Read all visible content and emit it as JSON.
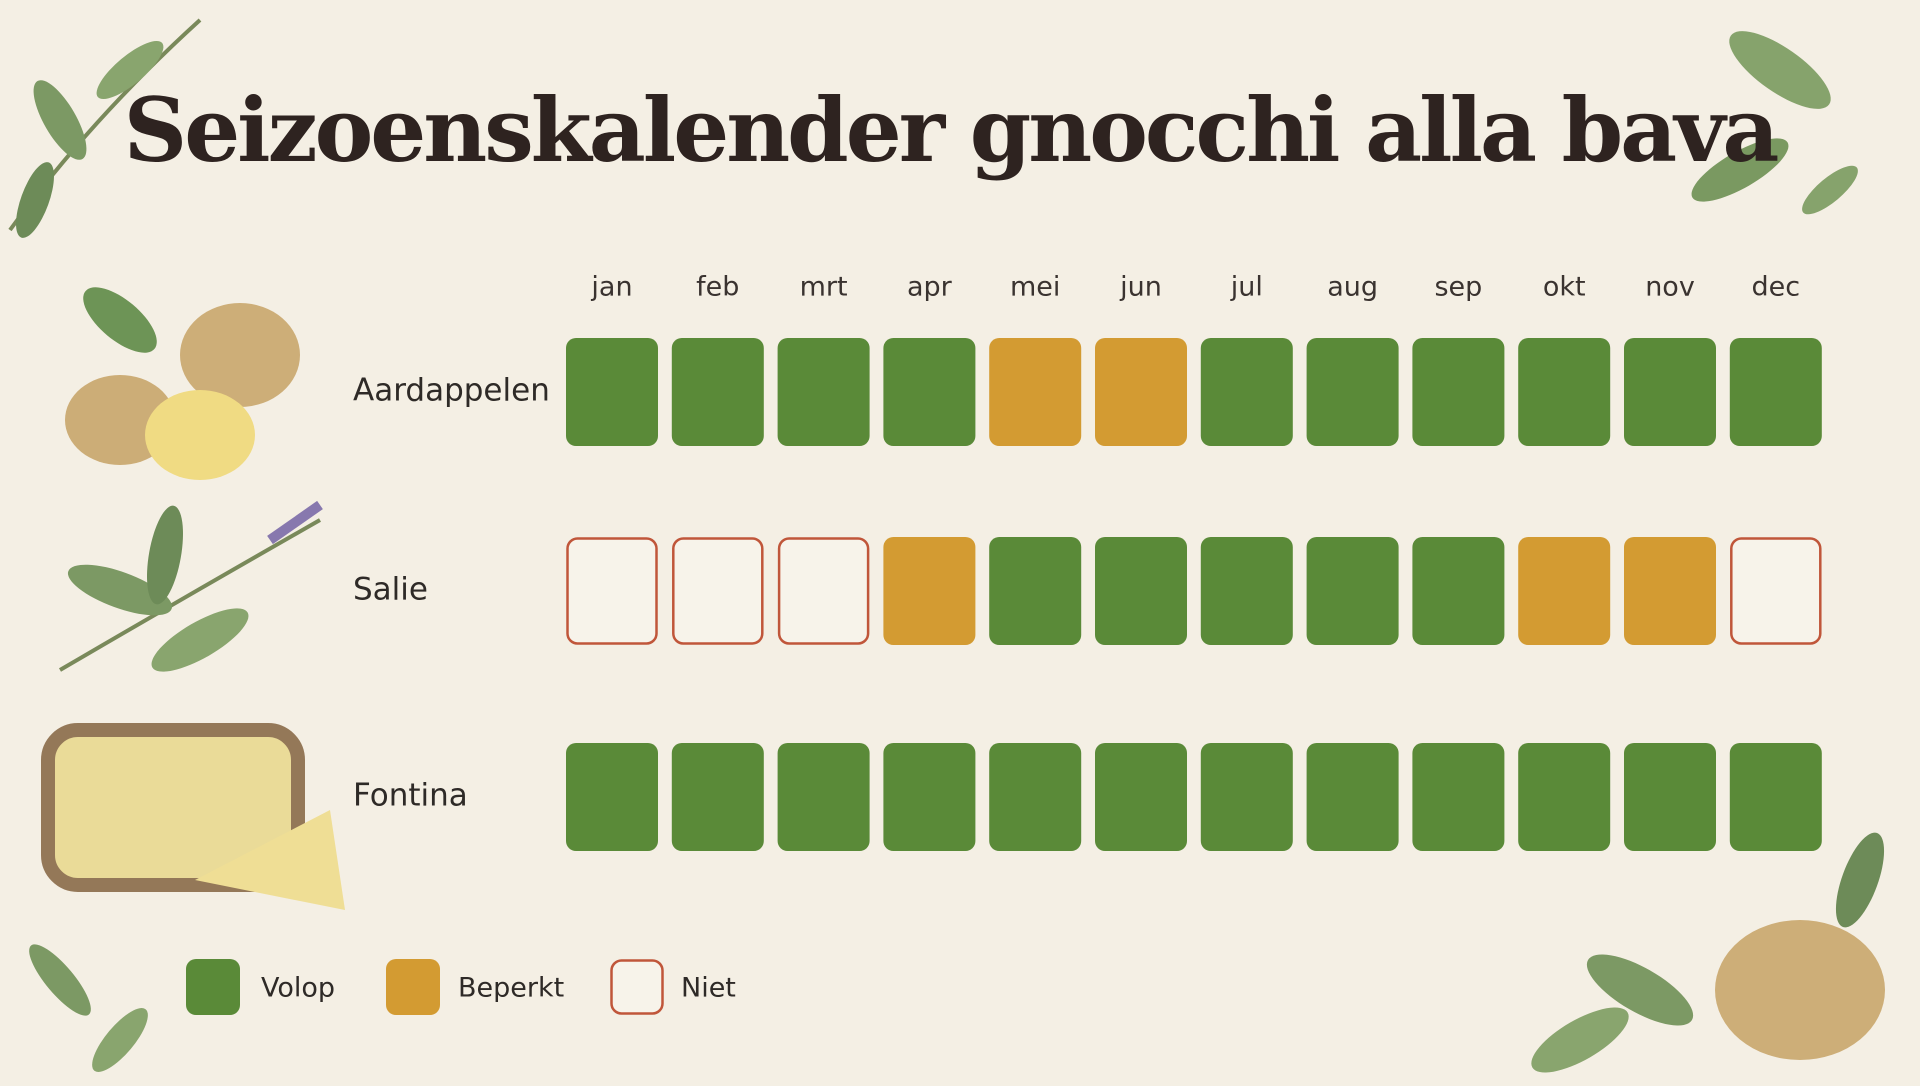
{
  "title": "Seizoenskalender gnocchi alla bava",
  "months": [
    "jan",
    "feb",
    "mrt",
    "apr",
    "mei",
    "jun",
    "jul",
    "aug",
    "sep",
    "okt",
    "nov",
    "dec"
  ],
  "legend": [
    {
      "label": "Volop",
      "color": "#5a8a38",
      "style": "fill"
    },
    {
      "label": "Beperkt",
      "color": "#d39b32",
      "style": "fill"
    },
    {
      "label": "Niet",
      "color": "#c0563a",
      "style": "outline"
    }
  ],
  "rows": [
    {
      "label": "Aardappelen",
      "cells": [
        0,
        0,
        0,
        0,
        1,
        1,
        0,
        0,
        0,
        0,
        0,
        0
      ]
    },
    {
      "label": "Salie",
      "cells": [
        2,
        2,
        2,
        1,
        0,
        0,
        0,
        0,
        0,
        1,
        1,
        2
      ]
    },
    {
      "label": "Fontina",
      "cells": [
        0,
        0,
        0,
        0,
        0,
        0,
        0,
        0,
        0,
        0,
        0,
        0
      ]
    }
  ]
}
